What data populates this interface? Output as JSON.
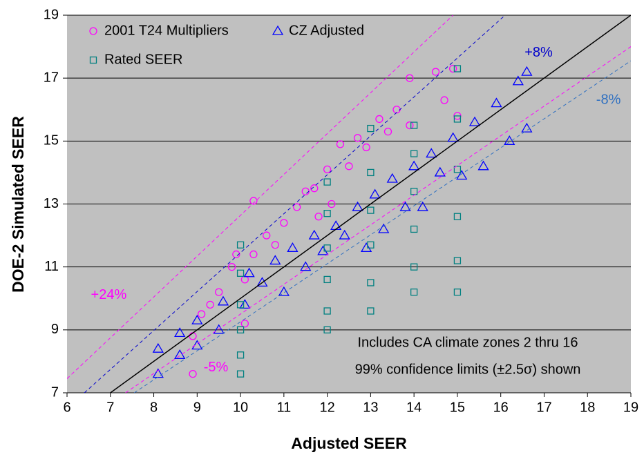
{
  "chart_data": {
    "type": "scatter",
    "xlabel": "Adjusted SEER",
    "ylabel": "DOE-2 Simulated SEER",
    "xlim": [
      6,
      19
    ],
    "xticks": [
      6,
      7,
      8,
      9,
      10,
      11,
      12,
      13,
      14,
      15,
      16,
      17,
      18,
      19
    ],
    "ylim": [
      7,
      19
    ],
    "yticks": [
      7,
      9,
      11,
      13,
      15,
      17,
      19
    ],
    "grid": true,
    "legend": "upper left",
    "series": [
      {
        "name": "2001 T24 Multipliers",
        "color": "#ff00ff",
        "marker": "circle",
        "x": [
          8.9,
          8.9,
          9.1,
          9.3,
          9.5,
          9.8,
          9.9,
          10.1,
          10.1,
          10.3,
          10.3,
          10.6,
          10.8,
          11.0,
          11.3,
          11.5,
          11.7,
          11.8,
          12.0,
          12.1,
          12.3,
          12.5,
          12.7,
          12.9,
          13.2,
          13.4,
          13.6,
          13.9,
          13.9,
          14.5,
          14.7,
          14.9,
          15.0
        ],
        "values": [
          7.6,
          8.8,
          9.5,
          9.8,
          10.2,
          11.0,
          11.4,
          9.2,
          10.6,
          11.4,
          13.1,
          12.0,
          11.7,
          12.4,
          12.9,
          13.4,
          13.5,
          12.6,
          14.1,
          13.0,
          14.9,
          14.2,
          15.1,
          14.8,
          15.7,
          15.3,
          16.0,
          17.0,
          15.5,
          17.2,
          16.3,
          17.3,
          15.8
        ]
      },
      {
        "name": "CZ Adjusted",
        "color": "#0000ff",
        "marker": "triangle",
        "x": [
          8.1,
          8.1,
          8.6,
          8.6,
          9.0,
          9.0,
          9.5,
          9.6,
          10.1,
          10.2,
          10.5,
          10.8,
          11.0,
          11.2,
          11.5,
          11.7,
          11.9,
          12.2,
          12.4,
          12.7,
          12.9,
          13.1,
          13.3,
          13.5,
          13.8,
          14.0,
          14.2,
          14.4,
          14.6,
          14.9,
          15.1,
          15.4,
          15.6,
          15.9,
          16.2,
          16.4,
          16.6,
          16.6
        ],
        "values": [
          7.6,
          8.4,
          8.2,
          8.9,
          8.5,
          9.3,
          9.0,
          9.9,
          9.8,
          10.8,
          10.5,
          11.2,
          10.2,
          11.6,
          11.0,
          12.0,
          11.5,
          12.3,
          12.0,
          12.9,
          11.6,
          13.3,
          12.2,
          13.8,
          12.9,
          14.2,
          12.9,
          14.6,
          14.0,
          15.1,
          13.9,
          15.6,
          14.2,
          16.2,
          15.0,
          16.9,
          15.4,
          17.2
        ]
      },
      {
        "name": "Rated SEER",
        "color": "#008080",
        "marker": "square",
        "x": [
          10,
          10,
          10,
          10,
          10,
          10,
          12,
          12,
          12,
          12,
          12,
          12,
          13,
          13,
          13,
          13,
          13,
          13,
          14,
          14,
          14,
          14,
          14,
          14,
          15,
          15,
          15,
          15,
          15,
          15
        ],
        "values": [
          7.6,
          8.2,
          9.0,
          9.8,
          10.8,
          11.7,
          9.0,
          9.6,
          10.6,
          11.6,
          12.7,
          13.7,
          9.6,
          10.5,
          11.7,
          12.8,
          14.0,
          15.4,
          10.2,
          11.0,
          12.2,
          13.4,
          14.6,
          15.5,
          10.2,
          11.2,
          12.6,
          14.1,
          15.7,
          17.3
        ]
      }
    ],
    "reference_lines": [
      {
        "color": "#000000",
        "dashed": false,
        "x": [
          7,
          19
        ],
        "y": [
          7,
          19
        ]
      },
      {
        "label": "+24%",
        "color": "#ff00ff",
        "dashed": true,
        "x": [
          6,
          14.9
        ],
        "y": [
          7.45,
          19
        ]
      },
      {
        "label": "+8%",
        "color": "#0000cc",
        "dashed": true,
        "x": [
          6.4,
          16.1
        ],
        "y": [
          7,
          19
        ]
      },
      {
        "label": "-8%",
        "color": "#3070c0",
        "dashed": true,
        "x": [
          7.55,
          19
        ],
        "y": [
          7,
          17.55
        ]
      },
      {
        "label": "-5%",
        "color": "#ff00ff",
        "dashed": true,
        "x": [
          7.35,
          19
        ],
        "y": [
          7,
          18.0
        ]
      }
    ],
    "annotations": [
      "Includes CA climate zones 2 thru 16",
      "99% confidence limits (±2.5σ) shown"
    ]
  }
}
